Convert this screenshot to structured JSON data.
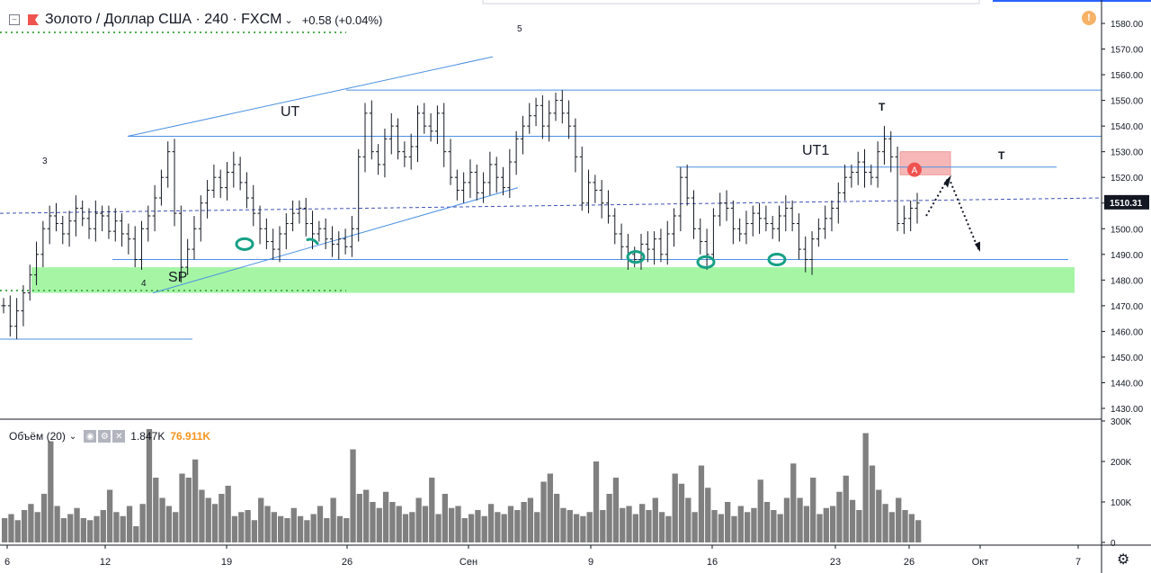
{
  "header": {
    "title": "Золото / Доллар США · 240 · FXCM",
    "change": "+0.58 (+0.04%)",
    "collapse_glyph": "−"
  },
  "price_axis": {
    "ticks": [
      "1580.00",
      "1570.00",
      "1560.00",
      "1550.00",
      "1540.00",
      "1530.00",
      "1520.00",
      "1510.00",
      "1500.00",
      "1490.00",
      "1480.00",
      "1470.00",
      "1460.00",
      "1450.00",
      "1440.00",
      "1430.00"
    ],
    "current_price": "1510.31"
  },
  "time_axis": {
    "ticks": [
      "6",
      "12",
      "19",
      "26",
      "Сен",
      "9",
      "16",
      "23",
      "26",
      "Окт",
      "7"
    ]
  },
  "volume": {
    "label": "Объём (20)",
    "value1": "1.847K",
    "value2": "76.911K",
    "ticks": [
      "300K",
      "200K",
      "100K",
      "0"
    ]
  },
  "annotations": {
    "ut": "UT",
    "ut1": "UT1",
    "sp": "SP",
    "t1": "T",
    "t2": "T",
    "wave3": "3",
    "wave4": "4",
    "wave5": "5",
    "alert_marker": "A"
  },
  "colors": {
    "trendline": "#4a90e2",
    "support_zone": "#a5f5a5",
    "resistance_zone": "#f5b7b7",
    "volume": "#808080",
    "candle": "#131722",
    "alert_icon": "#f7b267",
    "alert_marker": "#ef5350",
    "green_dots": "#4caf50",
    "hand_marks": "#16a085"
  },
  "icons": [
    "collapse-icon",
    "logo-icon",
    "chevron-down-icon",
    "alert-icon",
    "settings-icon"
  ],
  "chart_data": {
    "type": "candlestick",
    "symbol": "XAUUSD",
    "timeframe": "240",
    "ylim": [
      1422,
      1586
    ],
    "close_series": [
      1470,
      1462,
      1468,
      1475,
      1482,
      1490,
      1500,
      1505,
      1502,
      1498,
      1503,
      1508,
      1504,
      1500,
      1506,
      1505,
      1499,
      1503,
      1498,
      1496,
      1488,
      1500,
      1505,
      1512,
      1520,
      1530,
      1506,
      1485,
      1492,
      1500,
      1510,
      1515,
      1520,
      1516,
      1522,
      1525,
      1518,
      1512,
      1506,
      1500,
      1495,
      1492,
      1498,
      1502,
      1506,
      1508,
      1502,
      1498,
      1500,
      1496,
      1494,
      1496,
      1493,
      1500,
      1528,
      1545,
      1530,
      1525,
      1535,
      1540,
      1530,
      1528,
      1532,
      1545,
      1540,
      1538,
      1545,
      1530,
      1520,
      1515,
      1518,
      1522,
      1514,
      1518,
      1525,
      1520,
      1516,
      1526,
      1535,
      1540,
      1544,
      1548,
      1540,
      1545,
      1550,
      1545,
      1540,
      1528,
      1510,
      1518,
      1515,
      1510,
      1505,
      1498,
      1493,
      1490,
      1488,
      1494,
      1492,
      1496,
      1490,
      1498,
      1505,
      1520,
      1512,
      1500,
      1495,
      1490,
      1505,
      1510,
      1508,
      1500,
      1498,
      1502,
      1506,
      1504,
      1502,
      1500,
      1505,
      1508,
      1502,
      1492,
      1488,
      1496,
      1500,
      1504,
      1508,
      1514,
      1520,
      1522,
      1526,
      1522,
      1520,
      1530,
      1535,
      1528,
      1502,
      1504,
      1508,
      1510
    ],
    "volume_series": [
      60,
      70,
      55,
      80,
      95,
      75,
      120,
      250,
      90,
      60,
      70,
      85,
      60,
      55,
      65,
      80,
      130,
      75,
      65,
      90,
      40,
      95,
      280,
      160,
      110,
      90,
      75,
      170,
      160,
      205,
      130,
      110,
      95,
      120,
      140,
      65,
      75,
      80,
      55,
      110,
      90,
      75,
      65,
      60,
      85,
      65,
      55,
      70,
      90,
      60,
      110,
      65,
      60,
      230,
      120,
      130,
      100,
      85,
      125,
      100,
      90,
      70,
      75,
      110,
      90,
      160,
      70,
      120,
      85,
      90,
      60,
      70,
      80,
      65,
      95,
      75,
      70,
      90,
      80,
      100,
      110,
      75,
      150,
      170,
      120,
      85,
      80,
      70,
      65,
      75,
      200,
      80,
      120,
      160,
      85,
      90,
      70,
      95,
      80,
      110,
      75,
      65,
      170,
      145,
      110,
      75,
      190,
      135,
      80,
      70,
      100,
      65,
      90,
      75,
      85,
      155,
      100,
      80,
      70,
      110,
      195,
      110,
      90,
      160,
      70,
      85,
      90,
      125,
      165,
      105,
      80,
      270,
      190,
      130,
      95,
      75,
      110,
      80,
      70,
      55
    ],
    "horizontal_levels": [
      1554,
      1536,
      1524,
      1488,
      1457
    ],
    "support_zone": [
      1475,
      1485
    ],
    "resistance_zone": [
      1521,
      1530
    ],
    "dashed_current_level": 1510.31,
    "volume_ylim": [
      0,
      300000
    ]
  }
}
